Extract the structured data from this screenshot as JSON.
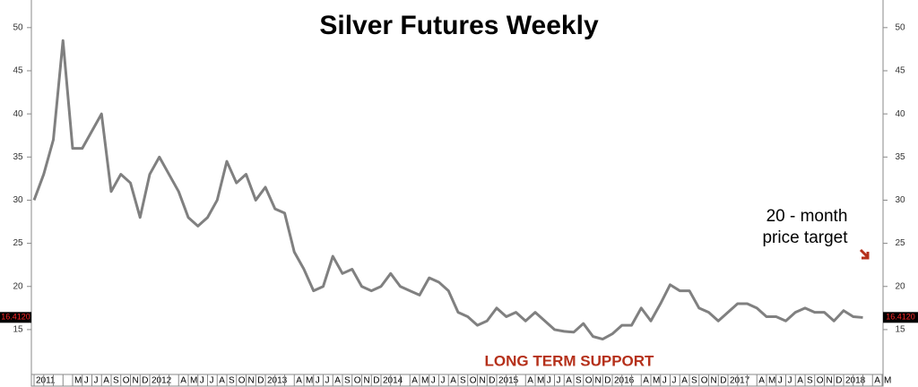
{
  "chart_data": {
    "type": "line",
    "title": "Silver Futures Weekly",
    "annotations": {
      "target": [
        "20 - month",
        "price target"
      ],
      "support": "LONG TERM SUPPORT"
    },
    "categories": [
      "2011",
      null,
      null,
      null,
      "M",
      "J",
      "J",
      "A",
      "S",
      "O",
      "N",
      "D",
      "2012",
      null,
      null,
      "A",
      "M",
      "J",
      "J",
      "A",
      "S",
      "O",
      "N",
      "D",
      "2013",
      null,
      null,
      "A",
      "M",
      "J",
      "J",
      "A",
      "S",
      "O",
      "N",
      "D",
      "2014",
      null,
      null,
      "A",
      "M",
      "J",
      "J",
      "A",
      "S",
      "O",
      "N",
      "D",
      "2015",
      null,
      null,
      "A",
      "M",
      "J",
      "J",
      "A",
      "S",
      "O",
      "N",
      "D",
      "2016",
      null,
      null,
      "A",
      "M",
      "J",
      "J",
      "A",
      "S",
      "O",
      "N",
      "D",
      "2017",
      null,
      null,
      "A",
      "M",
      "J",
      "J",
      "A",
      "S",
      "O",
      "N",
      "D",
      "2018",
      null,
      null,
      "A",
      "M"
    ],
    "series": [
      {
        "name": "Silver",
        "color": "#808080",
        "values": [
          30,
          33,
          37,
          48.5,
          36,
          36,
          38,
          40,
          31,
          33,
          32,
          28,
          33,
          35,
          33,
          31,
          28,
          27,
          28,
          30,
          34.5,
          32,
          33,
          30,
          31.5,
          29,
          28.5,
          24,
          22,
          19.5,
          20,
          23.5,
          21.5,
          22,
          20,
          19.5,
          20,
          21.5,
          20,
          19.5,
          19,
          21,
          20.5,
          19.5,
          17,
          16.5,
          15.5,
          16,
          17.5,
          16.5,
          17,
          16,
          17,
          16,
          15,
          14.8,
          14.7,
          15.7,
          14.2,
          13.9,
          14.5,
          15.5,
          15.5,
          17.5,
          16,
          18,
          20.2,
          19.5,
          19.5,
          17.5,
          17,
          16,
          17,
          18,
          18,
          17.5,
          16.5,
          16.5,
          16,
          17,
          17.5,
          17,
          17,
          16,
          17.2,
          16.5,
          16.4,
          null,
          null
        ]
      }
    ],
    "price_marker": {
      "value": 16.412,
      "label": "16.4120"
    },
    "ylim": [
      9.8,
      53.2
    ],
    "yticks": [
      15,
      20,
      25,
      30,
      35,
      40,
      45,
      50
    ]
  }
}
